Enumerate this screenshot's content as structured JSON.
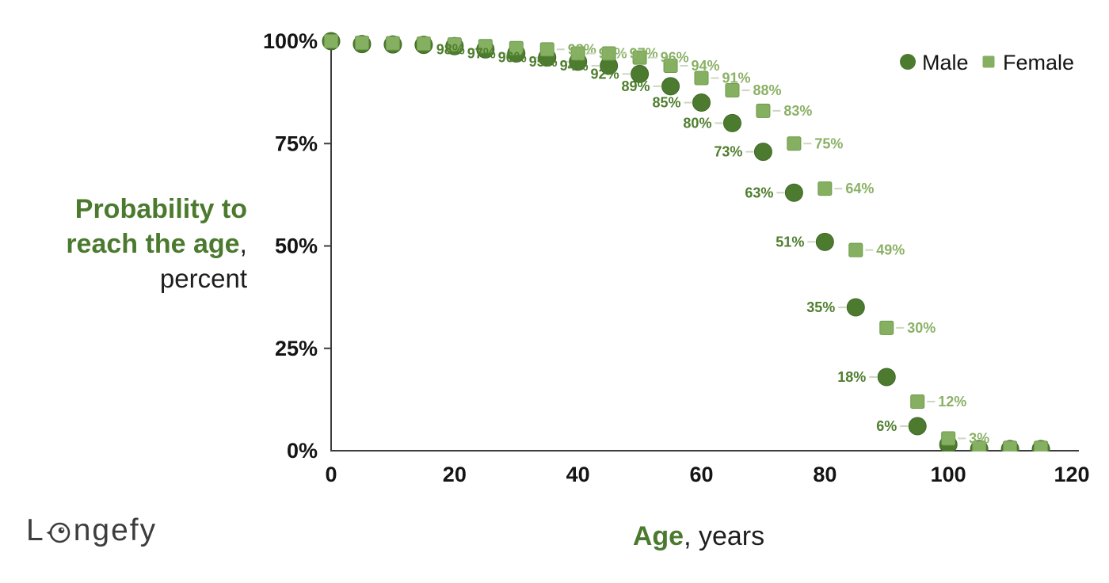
{
  "branding": {
    "logo_prefix": "L",
    "logo_suffix": "ngefy",
    "logo_color": "#3d3d3d"
  },
  "axis_titles": {
    "y_line1": "Probability to",
    "y_line2": "reach the age",
    "y_comma": ",",
    "y_secondary": "percent",
    "x_primary": "Age",
    "x_secondary": ", years",
    "title_green": "#4b7a2e"
  },
  "legend": [
    {
      "label": "Male",
      "marker": "circle",
      "color": "#4c7b2f"
    },
    {
      "label": "Female",
      "marker": "square",
      "color": "#85b061"
    }
  ],
  "chart_data": {
    "type": "scatter",
    "title": "",
    "xlabel": "Age, years",
    "ylabel": "Probability to reach the age, percent",
    "xlim": [
      0,
      120
    ],
    "ylim": [
      0,
      100
    ],
    "grid": false,
    "legend_position": "top-right",
    "x_ticks": [
      0,
      20,
      40,
      60,
      80,
      100,
      120
    ],
    "x_tick_labels": [
      "0",
      "20",
      "40",
      "60",
      "80",
      "100",
      "120"
    ],
    "y_ticks": [
      0,
      25,
      50,
      75,
      100
    ],
    "y_tick_labels": [
      "0%",
      "25%",
      "50%",
      "75%",
      "100%"
    ],
    "x": [
      0,
      5,
      10,
      15,
      20,
      25,
      30,
      35,
      40,
      45,
      50,
      55,
      60,
      65,
      70,
      75,
      80,
      85,
      90,
      95,
      100,
      105,
      110,
      115
    ],
    "series": [
      {
        "name": "Male",
        "marker": "circle",
        "color": "#4c7b2f",
        "stroke": "#3f6826",
        "label_side": "left",
        "values": [
          100,
          99.3,
          99.2,
          99.1,
          98.8,
          98,
          97,
          96,
          95,
          94,
          92,
          89,
          85,
          80,
          73,
          63,
          51,
          35,
          18,
          6,
          1.5,
          0.4,
          0.4,
          0.4
        ],
        "labels": [
          null,
          null,
          null,
          null,
          null,
          "98%",
          "97%",
          "96%",
          "95%",
          "94%",
          "92%",
          "89%",
          "85%",
          "80%",
          "73%",
          "63%",
          "51%",
          "35%",
          "18%",
          "6%",
          null,
          null,
          null,
          null
        ]
      },
      {
        "name": "Female",
        "marker": "square",
        "color": "#85b061",
        "stroke": "#6e9a4a",
        "label_side": "right",
        "values": [
          100,
          99.6,
          99.5,
          99.4,
          99.2,
          98.8,
          98.3,
          98,
          97,
          97,
          96,
          94,
          91,
          88,
          83,
          75,
          64,
          49,
          30,
          12,
          3,
          0.7,
          0.7,
          0.7
        ],
        "labels": [
          null,
          null,
          null,
          null,
          null,
          null,
          null,
          "98%",
          "97%",
          "97%",
          "96%",
          "94%",
          "91%",
          "88%",
          "83%",
          "75%",
          "64%",
          "49%",
          "30%",
          "12%",
          "3%",
          null,
          null,
          null
        ]
      }
    ]
  },
  "colors": {
    "axis": "#3c3c3c",
    "connector": "#ccd6c0",
    "tick_text": "#141414"
  }
}
